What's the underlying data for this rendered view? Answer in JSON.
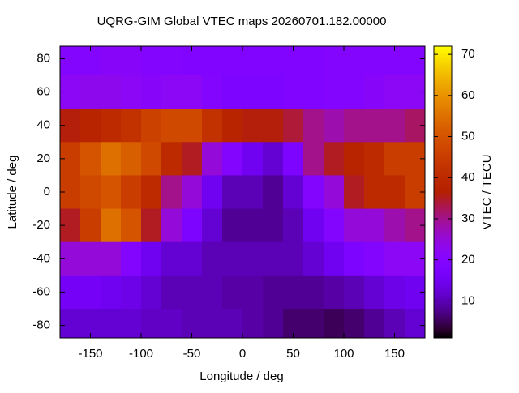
{
  "chart_data": {
    "type": "heatmap",
    "title": "UQRG-GIM Global VTEC maps 20260701.182.00000",
    "x_label": "Longitude / deg",
    "y_label": "Latitude / deg",
    "colorbar_label": "VTEC / TECU",
    "x": [
      -170,
      -150,
      -130,
      -110,
      -90,
      -70,
      -50,
      -30,
      -10,
      10,
      30,
      50,
      70,
      90,
      110,
      130,
      150,
      170
    ],
    "y": [
      80,
      60,
      40,
      20,
      0,
      -20,
      -40,
      -60,
      -80
    ],
    "z": [
      [
        20,
        20,
        21,
        21,
        20,
        20,
        19,
        19,
        19,
        19,
        19,
        19,
        19,
        20,
        20,
        20,
        20,
        20
      ],
      [
        22,
        23,
        23,
        22,
        21,
        22,
        22,
        20,
        18,
        18,
        18,
        19,
        19,
        20,
        20,
        21,
        22,
        22
      ],
      [
        36,
        38,
        40,
        42,
        46,
        48,
        48,
        42,
        38,
        36,
        36,
        34,
        30,
        28,
        30,
        30,
        30,
        32
      ],
      [
        45,
        50,
        55,
        52,
        48,
        40,
        35,
        25,
        20,
        15,
        12,
        18,
        30,
        35,
        38,
        40,
        45,
        45
      ],
      [
        45,
        48,
        50,
        45,
        40,
        30,
        25,
        15,
        10,
        10,
        8,
        12,
        20,
        25,
        35,
        40,
        40,
        45
      ],
      [
        35,
        45,
        55,
        50,
        35,
        25,
        18,
        12,
        8,
        8,
        8,
        10,
        15,
        20,
        25,
        25,
        28,
        30
      ],
      [
        25,
        25,
        25,
        20,
        15,
        12,
        12,
        10,
        10,
        10,
        10,
        10,
        12,
        15,
        18,
        20,
        22,
        22
      ],
      [
        16,
        16,
        15,
        14,
        12,
        10,
        10,
        10,
        9,
        9,
        8,
        8,
        8,
        9,
        10,
        12,
        14,
        15
      ],
      [
        12,
        12,
        12,
        12,
        11,
        11,
        10,
        10,
        10,
        9,
        8,
        6,
        6,
        5,
        6,
        8,
        10,
        12
      ]
    ],
    "cell_width": 20,
    "cell_height": 20,
    "xlim": [
      -180,
      180
    ],
    "ylim": [
      -87.5,
      87.5
    ],
    "zlim": [
      1,
      72
    ],
    "xticks": [
      -150,
      -100,
      -50,
      0,
      50,
      100,
      150
    ],
    "yticks": [
      -80,
      -60,
      -40,
      -20,
      0,
      20,
      40,
      60,
      80
    ],
    "zticks": [
      10,
      20,
      30,
      40,
      50,
      60,
      70
    ],
    "colormap": "gnuplot-rgbformulae-7-5-15"
  }
}
